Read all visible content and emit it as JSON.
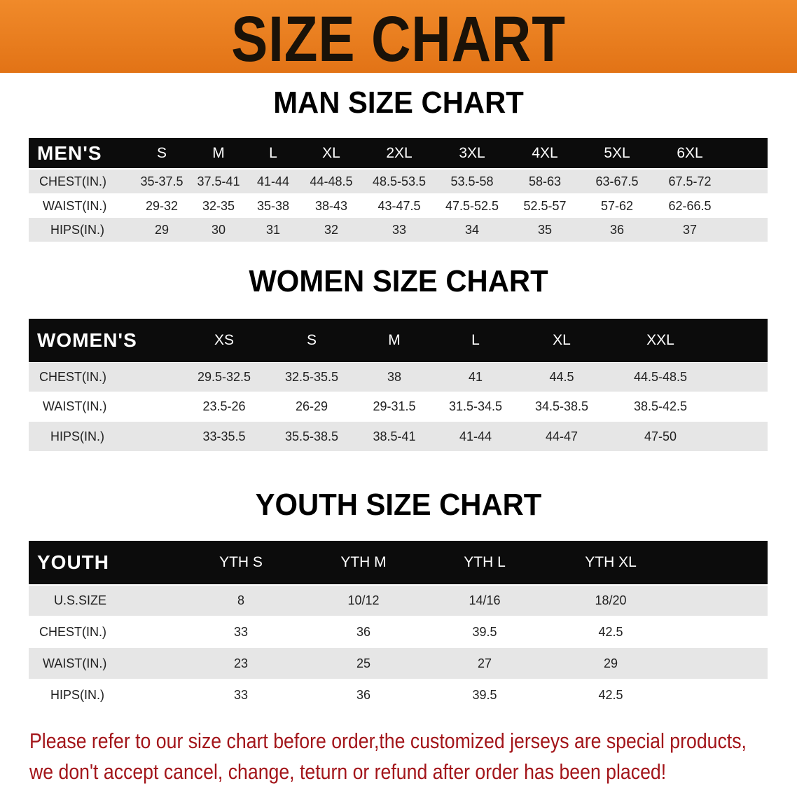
{
  "banner": {
    "title": "SIZE CHART",
    "color": "#e8791c"
  },
  "men": {
    "title": "MAN SIZE CHART",
    "header": [
      "MEN'S",
      "S",
      "M",
      "L",
      "XL",
      "2XL",
      "3XL",
      "4XL",
      "5XL",
      "6XL"
    ],
    "rows": [
      [
        "CHEST(IN.)",
        "35-37.5",
        "37.5-41",
        "41-44",
        "44-48.5",
        "48.5-53.5",
        "53.5-58",
        "58-63",
        "63-67.5",
        "67.5-72"
      ],
      [
        "WAIST(IN.)",
        "29-32",
        "32-35",
        "35-38",
        "38-43",
        "43-47.5",
        "47.5-52.5",
        "52.5-57",
        "57-62",
        "62-66.5"
      ],
      [
        "HIPS(IN.)",
        "29",
        "30",
        "31",
        "32",
        "33",
        "34",
        "35",
        "36",
        "37"
      ]
    ]
  },
  "women": {
    "title": "WOMEN SIZE CHART",
    "header": [
      "WOMEN'S",
      "XS",
      "S",
      "M",
      "L",
      "XL",
      "XXL"
    ],
    "rows": [
      [
        "CHEST(IN.)",
        "29.5-32.5",
        "32.5-35.5",
        "38",
        "41",
        "44.5",
        "44.5-48.5"
      ],
      [
        "WAIST(IN.)",
        "23.5-26",
        "26-29",
        "29-31.5",
        "31.5-34.5",
        "34.5-38.5",
        "38.5-42.5"
      ],
      [
        "HIPS(IN.)",
        "33-35.5",
        "35.5-38.5",
        "38.5-41",
        "41-44",
        "44-47",
        "47-50"
      ]
    ]
  },
  "youth": {
    "title": "YOUTH SIZE CHART",
    "header": [
      "YOUTH",
      "YTH S",
      "YTH M",
      "YTH L",
      "YTH XL"
    ],
    "rows": [
      [
        "U.S.SIZE",
        "8",
        "10/12",
        "14/16",
        "18/20"
      ],
      [
        "CHEST(IN.)",
        "33",
        "36",
        "39.5",
        "42.5"
      ],
      [
        "WAIST(IN.)",
        "23",
        "25",
        "27",
        "29"
      ],
      [
        "HIPS(IN.)",
        "33",
        "36",
        "39.5",
        "42.5"
      ]
    ]
  },
  "note": {
    "line1": "Please refer to our size chart before order,the customized jerseys are special products,",
    "line2": "we don't accept cancel, change, teturn or refund after order has been placed!",
    "color": "#a3151a"
  }
}
